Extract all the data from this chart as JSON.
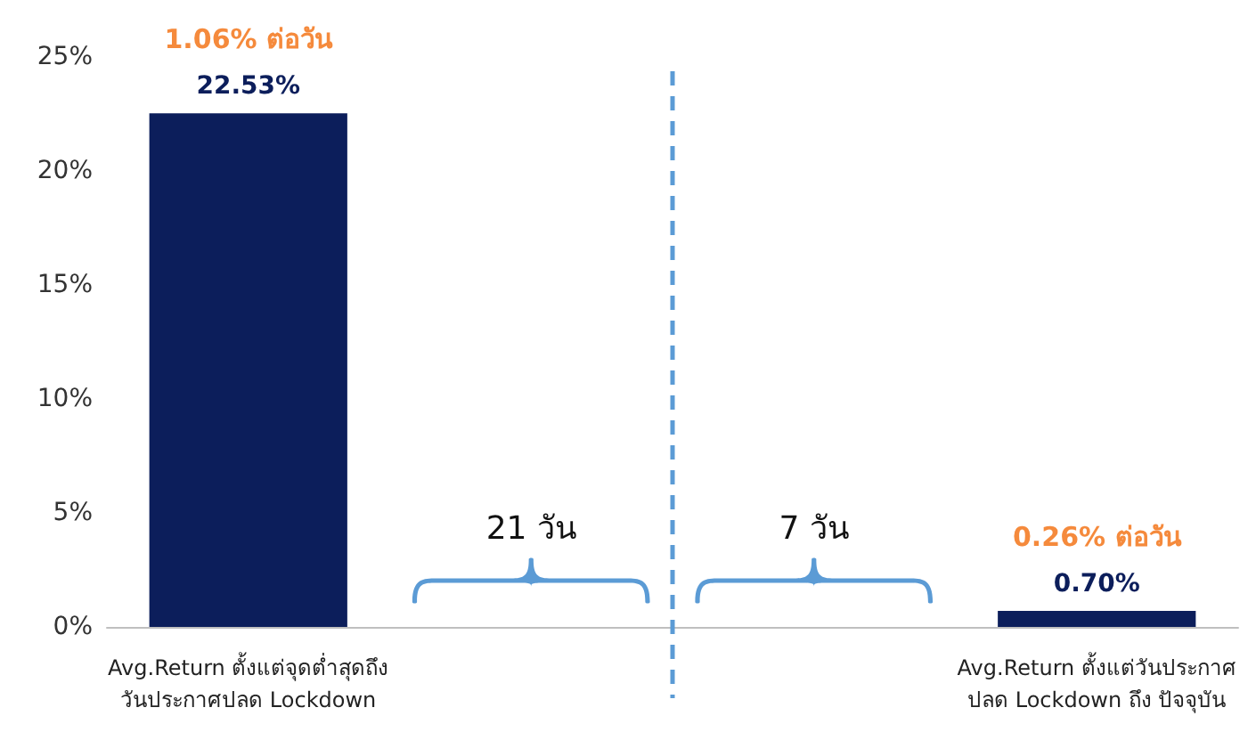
{
  "chart_data": {
    "type": "bar",
    "categories": [
      "Avg.Return ตั้งแต่จุดต่ำสุดถึง\nวันประกาศปลด Lockdown",
      null,
      null,
      "Avg.Return ตั้งแต่วันประกาศ\nปลด Lockdown ถึง ปัจจุบัน"
    ],
    "values": [
      22.53,
      null,
      null,
      0.7
    ],
    "value_labels": [
      "22.53%",
      null,
      null,
      "0.70%"
    ],
    "color": "#0c1e5b",
    "ylim": [
      0,
      25
    ],
    "yticks": [
      {
        "value": 0,
        "label": "0%"
      },
      {
        "value": 5,
        "label": "5%"
      },
      {
        "value": 10,
        "label": "10%"
      },
      {
        "value": 15,
        "label": "15%"
      },
      {
        "value": 20,
        "label": "20%"
      },
      {
        "value": 25,
        "label": "25%"
      }
    ],
    "annotations": [
      {
        "text": "1.06% ต่อวัน",
        "x": "Avg.Return ตั้งแต่จุดต่ำสุดถึง\nวันประกาศปลด Lockdown",
        "y": 22.53
      },
      {
        "text": "0.26% ต่อวัน",
        "x": "Avg.Return ตั้งแต่วันประกาศ\nปลด Lockdown ถึง ปัจจุบัน",
        "y": 0.7
      },
      "21 วัน",
      "7 วัน"
    ],
    "grid": false
  }
}
